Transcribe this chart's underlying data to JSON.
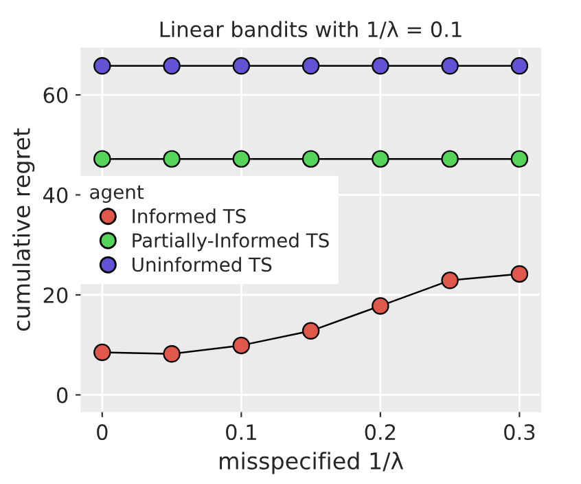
{
  "chart_data": {
    "type": "line",
    "title": "Linear bandits with 1/λ = 0.1",
    "xlabel": "misspecified 1/λ",
    "ylabel": "cumulative regret",
    "legend_title": "agent",
    "x": [
      0,
      0.05,
      0.1,
      0.15,
      0.2,
      0.25,
      0.3
    ],
    "series": [
      {
        "name": "Informed TS",
        "color": "#e0574b",
        "values": [
          8.5,
          8.2,
          9.9,
          12.8,
          17.8,
          22.9,
          24.2
        ]
      },
      {
        "name": "Partially-Informed TS",
        "color": "#55d45a",
        "values": [
          47.2,
          47.2,
          47.2,
          47.2,
          47.2,
          47.2,
          47.2
        ]
      },
      {
        "name": "Uninformed TS",
        "color": "#6352d4",
        "values": [
          65.8,
          65.8,
          65.8,
          65.8,
          65.8,
          65.8,
          65.8
        ]
      }
    ],
    "xlim": [
      -0.015,
      0.315
    ],
    "xticks": [
      0,
      0.1,
      0.2,
      0.3
    ],
    "ylim": [
      -3.3,
      69.3
    ],
    "yticks": [
      0,
      20,
      40,
      60
    ],
    "grid": true,
    "legend": "left",
    "marker": "circle",
    "line_style": "solid"
  }
}
